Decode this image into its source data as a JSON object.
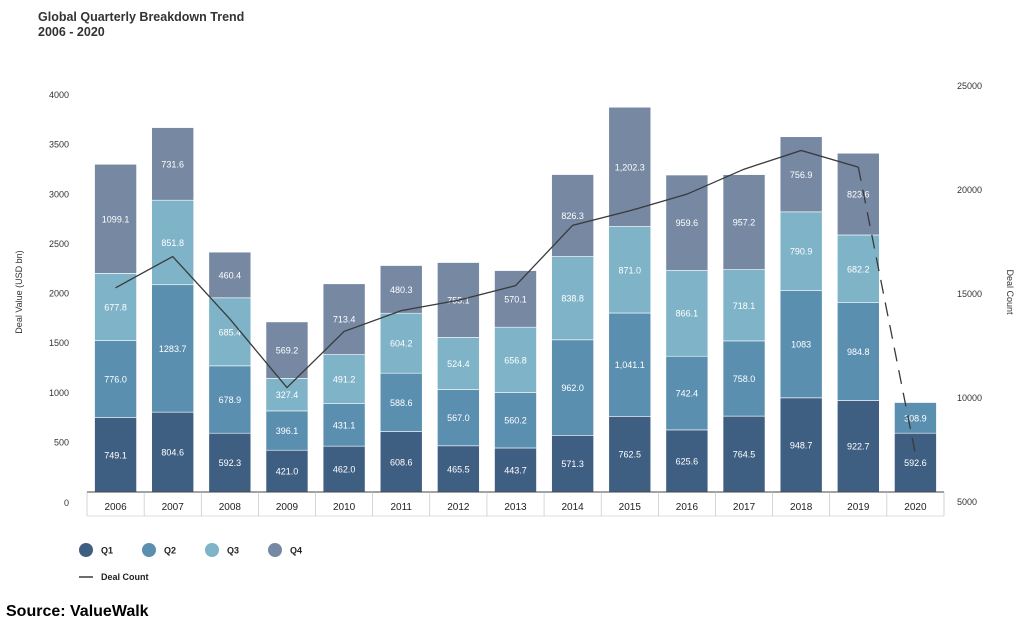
{
  "title": "Global Quarterly Breakdown Trend",
  "subtitle": "2006 - 2020",
  "source": "Source: ValueWalk",
  "chart_data": {
    "type": "bar",
    "stacked": true,
    "title": "Global Quarterly Breakdown Trend",
    "subtitle": "2006 - 2020",
    "ylabel": "Deal Value (USD bn)",
    "y2label": "Deal Count",
    "ylim": [
      0,
      4000
    ],
    "yticks": [
      0,
      500,
      1000,
      1500,
      2000,
      2500,
      3000,
      3500,
      4000
    ],
    "y2lim": [
      5000,
      25000
    ],
    "y2ticks": [
      5000,
      10000,
      15000,
      20000,
      25000
    ],
    "categories": [
      "2006",
      "2007",
      "2008",
      "2009",
      "2010",
      "2011",
      "2012",
      "2013",
      "2014",
      "2015",
      "2016",
      "2017",
      "2018",
      "2019",
      "2020"
    ],
    "series": [
      {
        "name": "Q1",
        "color": "#3f5f82",
        "values": [
          749.1,
          804.6,
          592.3,
          421.0,
          462.0,
          608.6,
          465.5,
          443.7,
          571.3,
          762.5,
          625.6,
          764.5,
          948.7,
          922.7,
          592.6
        ],
        "labels": [
          "749.1",
          "804.6",
          "592.3",
          "421.0",
          "462.0",
          "608.6",
          "465.5",
          "443.7",
          "571.3",
          "762.5",
          "625.6",
          "764.5",
          "948.7",
          "922.7",
          "592.6"
        ]
      },
      {
        "name": "Q2",
        "color": "#5b8fb0",
        "values": [
          776.0,
          1283.7,
          678.9,
          396.1,
          431.1,
          588.6,
          567.0,
          560.2,
          962.0,
          1041.1,
          742.4,
          758.0,
          1083,
          984.8,
          308.9
        ],
        "labels": [
          "776.0",
          "1283.7",
          "678.9",
          "396.1",
          "431.1",
          "588.6",
          "567.0",
          "560.2",
          "962.0",
          "1,041.1",
          "742.4",
          "758.0",
          "1083",
          "984.8",
          "308.9"
        ]
      },
      {
        "name": "Q3",
        "color": "#7eb3c8",
        "values": [
          677.8,
          851.8,
          685.4,
          327.4,
          491.2,
          604.2,
          524.4,
          656.8,
          838.8,
          871.0,
          866.1,
          718.1,
          790.9,
          682.2,
          null
        ],
        "labels": [
          "677.8",
          "851.8",
          "685.4",
          "327.4",
          "491.2",
          "604.2",
          "524.4",
          "656.8",
          "838.8",
          "871.0",
          "866.1",
          "718.1",
          "790.9",
          "682.2",
          ""
        ]
      },
      {
        "name": "Q4",
        "color": "#7688a2",
        "values": [
          1099.1,
          731.6,
          460.4,
          569.2,
          713.4,
          480.3,
          755.1,
          570.1,
          826.3,
          1202.3,
          959.6,
          957.2,
          756.9,
          823.6,
          null
        ],
        "labels": [
          "1099.1",
          "731.6",
          "460.4",
          "569.2",
          "713.4",
          "480.3",
          "755.1",
          "570.1",
          "826.3",
          "1,202.3",
          "959.6",
          "957.2",
          "756.9",
          "823.6",
          ""
        ]
      }
    ],
    "line": {
      "name": "Deal Count",
      "axis": "secondary",
      "color": "#3a3a3a",
      "values": [
        15300,
        16800,
        13800,
        10500,
        13200,
        14200,
        14700,
        15400,
        18300,
        19000,
        19800,
        21000,
        21900,
        21100,
        7300
      ],
      "dashed_from_index": 13
    },
    "legend": {
      "position": "bottom-left",
      "items": [
        "Q1",
        "Q2",
        "Q3",
        "Q4"
      ],
      "line_item": "Deal Count"
    },
    "grid": false
  }
}
